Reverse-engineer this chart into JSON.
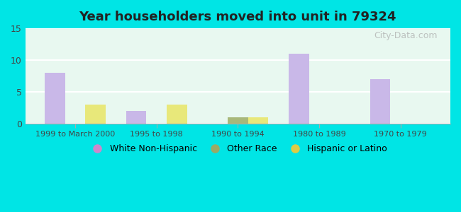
{
  "title": "Year householders moved into unit in 79324",
  "categories": [
    "1999 to March 2000",
    "1995 to 1998",
    "1990 to 1994",
    "1980 to 1989",
    "1970 to 1979"
  ],
  "series": {
    "White Non-Hispanic": [
      8,
      2,
      0,
      11,
      7
    ],
    "Other Race": [
      0,
      0,
      1,
      0,
      0
    ],
    "Hispanic or Latino": [
      3,
      3,
      1,
      0,
      0
    ]
  },
  "colors": {
    "White Non-Hispanic": "#c9b8e8",
    "Other Race": "#a8b87a",
    "Hispanic or Latino": "#e8e87a"
  },
  "legend_dot_colors": {
    "White Non-Hispanic": "#cc88cc",
    "Other Race": "#99aa66",
    "Hispanic or Latino": "#ddcc44"
  },
  "ylim": [
    0,
    15
  ],
  "yticks": [
    0,
    5,
    10,
    15
  ],
  "bar_width": 0.25,
  "outer_background": "#00e5e5",
  "plot_background": "#e8f8f0",
  "grid_color": "#ffffff",
  "watermark": "City-Data.com"
}
